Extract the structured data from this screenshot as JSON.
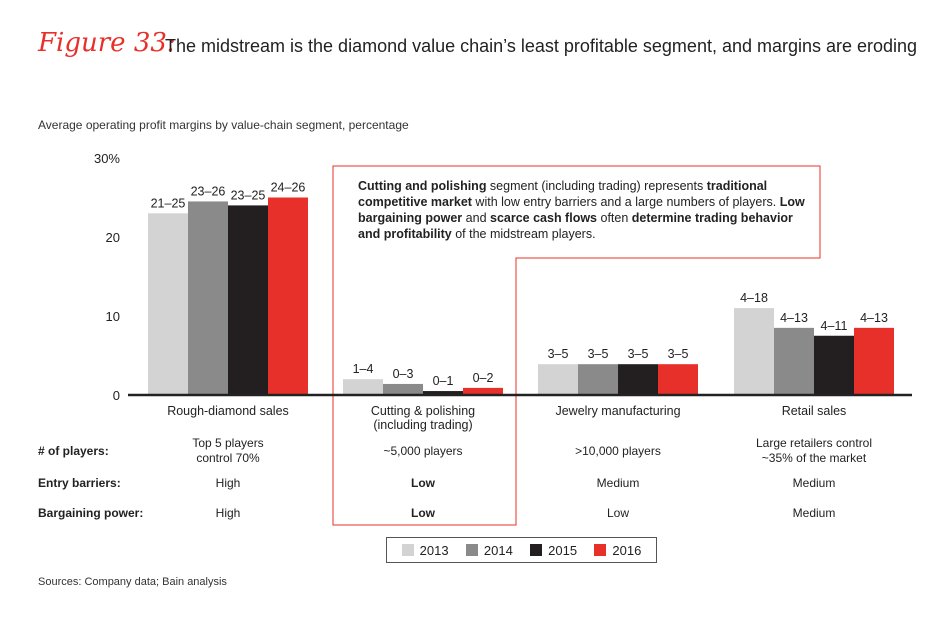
{
  "figure_label": "Figure 33:",
  "figure_title": "The midstream is the diamond value chain’s least profitable segment, and margins are eroding",
  "source": "Sources: Company data; Bain analysis",
  "chart_data": {
    "type": "bar",
    "subtitle": "Average operating profit margins by value-chain segment, percentage",
    "categories": [
      "Rough-diamond sales",
      "Cutting & polishing\n(including trading)",
      "Jewelry manufacturing",
      "Retail sales"
    ],
    "series": [
      {
        "name": "2013",
        "color": "#d3d3d3",
        "values": [
          23,
          2,
          3.9,
          11
        ],
        "labels": [
          "21–25",
          "1–4",
          "3–5",
          "4–18"
        ]
      },
      {
        "name": "2014",
        "color": "#8a8a8a",
        "values": [
          24.5,
          1.4,
          3.9,
          8.5
        ],
        "labels": [
          "23–26",
          "0–3",
          "3–5",
          "4–13"
        ]
      },
      {
        "name": "2015",
        "color": "#231f20",
        "values": [
          24,
          0.5,
          3.9,
          7.5
        ],
        "labels": [
          "23–25",
          "0–1",
          "3–5",
          "4–11"
        ]
      },
      {
        "name": "2016",
        "color": "#e8302a",
        "values": [
          25,
          0.9,
          3.9,
          8.5
        ],
        "labels": [
          "24–26",
          "0–2",
          "3–5",
          "4–13"
        ]
      }
    ],
    "ylim": [
      0,
      30
    ],
    "yticks": [
      0,
      10,
      20
    ],
    "ytick_labels": [
      "0",
      "10",
      "20",
      "30%"
    ],
    "ytick_values": [
      0,
      10,
      20,
      30
    ],
    "legend_position": "bottom-center"
  },
  "table": {
    "row_labels": [
      "# of players:",
      "Entry barriers:",
      "Bargaining power:"
    ],
    "players": [
      "Top 5 players\ncontrol 70%",
      "~5,000 players",
      ">10,000 players",
      "Large retailers control\n~35% of the market"
    ],
    "entry_barriers": [
      "High",
      "Low",
      "Medium",
      "Medium"
    ],
    "bargaining_power": [
      "High",
      "Low",
      "Low",
      "Medium"
    ]
  },
  "callout": {
    "parts": [
      {
        "t": "Cutting and polishing",
        "b": true
      },
      {
        "t": " segment (including trading) represents ",
        "b": false
      },
      {
        "t": "traditional competitive market",
        "b": true
      },
      {
        "t": " with low entry barriers and a large numbers of players. ",
        "b": false
      },
      {
        "t": "Low bargaining power",
        "b": true
      },
      {
        "t": " and ",
        "b": false
      },
      {
        "t": "scarce cash flows",
        "b": true
      },
      {
        "t": " often ",
        "b": false
      },
      {
        "t": "determine trading behavior and profitability",
        "b": true
      },
      {
        "t": " of the midstream players.",
        "b": false
      }
    ]
  }
}
